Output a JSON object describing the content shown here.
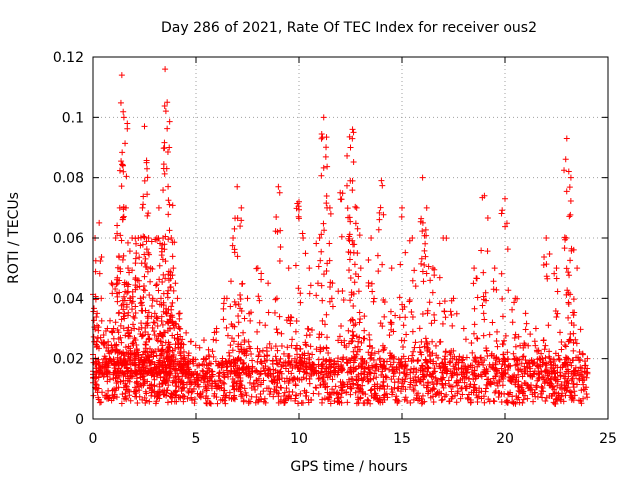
{
  "chart_data": {
    "type": "scatter",
    "title": "Day 286 of 2021, Rate Of TEC Index for receiver ous2",
    "xlabel": "GPS time / hours",
    "ylabel": "ROTI / TECUs",
    "xlim": [
      0,
      25
    ],
    "ylim": [
      0,
      0.12
    ],
    "xticks": [
      "0",
      "5",
      "10",
      "15",
      "20",
      "25"
    ],
    "yticks": [
      "0",
      "0.02",
      "0.04",
      "0.06",
      "0.08",
      "0.1",
      "0.12"
    ],
    "grid": true,
    "marker": "+",
    "color": "#ff0000",
    "series": [
      {
        "x": [
          0.0,
          0.1,
          0.2,
          0.3,
          0.4,
          0.5,
          0.6,
          0.7,
          0.8,
          0.9,
          1.0,
          1.1,
          1.2,
          1.3,
          1.4,
          1.5,
          1.6,
          1.7,
          1.8,
          1.9,
          2.0,
          2.1,
          2.2,
          2.3,
          2.4,
          2.5,
          2.6,
          2.7,
          2.8,
          2.9,
          3.0,
          3.1,
          3.2,
          3.3,
          3.4,
          3.5,
          3.6,
          3.7,
          3.8,
          3.9,
          4.0,
          4.1,
          4.2,
          4.3,
          4.4,
          4.5,
          4.6,
          4.7,
          4.8,
          4.9,
          5.0,
          5.5,
          6.0,
          6.5,
          6.8,
          7.0,
          7.2,
          7.5,
          8.0,
          8.5,
          9.0,
          9.5,
          10.0,
          10.2,
          10.5,
          11.0,
          11.2,
          11.5,
          12.0,
          12.5,
          12.6,
          12.8,
          13.0,
          13.5,
          14.0,
          14.5,
          15.0,
          15.5,
          16.0,
          16.2,
          16.5,
          17.0,
          17.5,
          18.0,
          18.5,
          19.0,
          19.5,
          20.0,
          20.5,
          21.0,
          21.5,
          22.0,
          22.5,
          23.0,
          23.2,
          23.5,
          24.0
        ],
        "y": [
          0.012,
          0.06,
          0.035,
          0.065,
          0.04,
          0.025,
          0.018,
          0.03,
          0.02,
          0.045,
          0.03,
          0.06,
          0.045,
          0.07,
          0.114,
          0.1,
          0.07,
          0.05,
          0.04,
          0.06,
          0.03,
          0.055,
          0.06,
          0.04,
          0.07,
          0.097,
          0.085,
          0.06,
          0.05,
          0.04,
          0.035,
          0.06,
          0.07,
          0.04,
          0.06,
          0.116,
          0.105,
          0.09,
          0.06,
          0.05,
          0.045,
          0.04,
          0.03,
          0.025,
          0.02,
          0.018,
          0.015,
          0.01,
          0.012,
          0.01,
          0.012,
          0.02,
          0.03,
          0.04,
          0.06,
          0.077,
          0.07,
          0.04,
          0.05,
          0.045,
          0.077,
          0.05,
          0.072,
          0.06,
          0.05,
          0.06,
          0.1,
          0.07,
          0.075,
          0.09,
          0.096,
          0.07,
          0.05,
          0.06,
          0.079,
          0.05,
          0.07,
          0.06,
          0.08,
          0.07,
          0.05,
          0.06,
          0.04,
          0.03,
          0.05,
          0.074,
          0.05,
          0.073,
          0.04,
          0.035,
          0.03,
          0.06,
          0.05,
          0.093,
          0.08,
          0.05,
          0.02
        ],
        "note_floor": [
          0.005,
          0.02
        ]
      }
    ]
  }
}
